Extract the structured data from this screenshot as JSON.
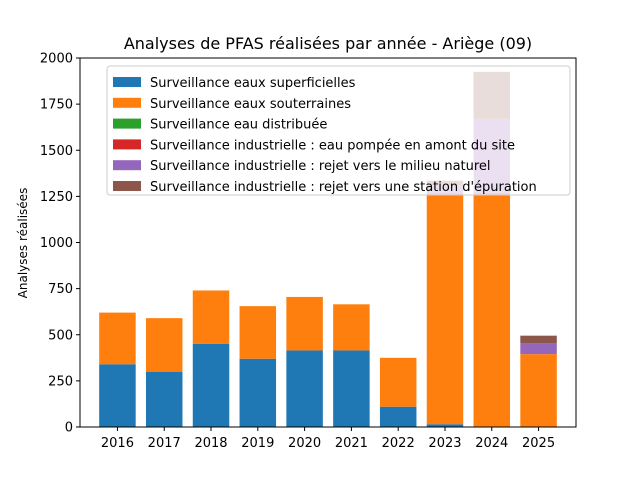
{
  "chart_data": {
    "type": "bar",
    "stacked": true,
    "title": "Analyses de PFAS réalisées par année - Ariège (09)",
    "xlabel": "",
    "ylabel": "Analyses réalisées",
    "ylim": [
      0,
      2000
    ],
    "yticks": [
      0,
      250,
      500,
      750,
      1000,
      1250,
      1500,
      1750,
      2000
    ],
    "grid": false,
    "legend_position": "upper-left",
    "categories": [
      "2016",
      "2017",
      "2018",
      "2019",
      "2020",
      "2021",
      "2022",
      "2023",
      "2024",
      "2025"
    ],
    "series": [
      {
        "name": "Surveillance eaux superficielles",
        "color": "#1f77b4",
        "values": [
          340,
          300,
          450,
          370,
          415,
          415,
          110,
          15,
          0,
          0
        ]
      },
      {
        "name": "Surveillance eaux souterraines",
        "color": "#ff7f0e",
        "values": [
          280,
          290,
          290,
          285,
          290,
          250,
          265,
          1245,
          1260,
          395
        ]
      },
      {
        "name": "Surveillance eau distribuée",
        "color": "#2ca02c",
        "values": [
          0,
          0,
          0,
          0,
          0,
          0,
          0,
          0,
          0,
          0
        ]
      },
      {
        "name": "Surveillance industrielle : eau pompée en amont du site",
        "color": "#d62728",
        "values": [
          0,
          0,
          0,
          0,
          0,
          0,
          0,
          8,
          10,
          0
        ]
      },
      {
        "name": "Surveillance industrielle : rejet vers le milieu naturel",
        "color": "#9467bd",
        "values": [
          0,
          0,
          0,
          0,
          0,
          0,
          0,
          40,
          400,
          60
        ]
      },
      {
        "name": "Surveillance industrielle : rejet vers une station d'épuration",
        "color": "#8c564b",
        "values": [
          0,
          0,
          0,
          0,
          0,
          0,
          0,
          27,
          255,
          40
        ]
      }
    ]
  }
}
